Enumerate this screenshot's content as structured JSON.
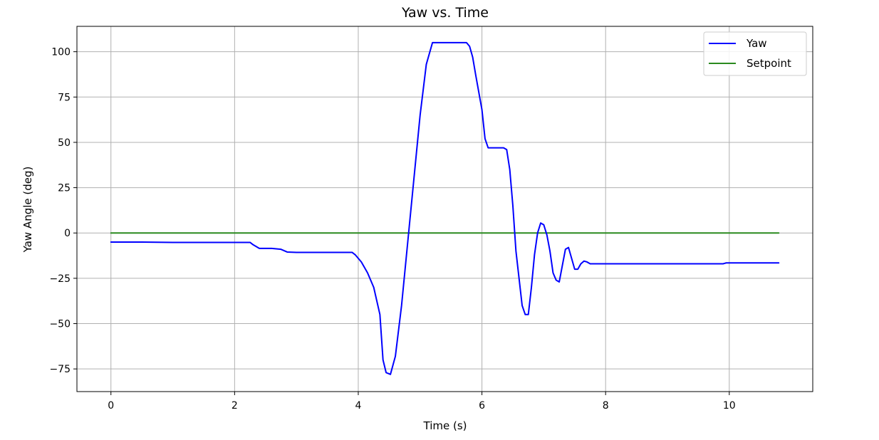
{
  "chart_data": {
    "type": "line",
    "title": "Yaw vs. Time",
    "xlabel": "Time (s)",
    "ylabel": "Yaw Angle (deg)",
    "xlim": [
      -0.55,
      11.35
    ],
    "ylim": [
      -87.5,
      114
    ],
    "xticks": [
      0,
      2,
      4,
      6,
      8,
      10
    ],
    "yticks": [
      -75,
      -50,
      -25,
      0,
      25,
      50,
      75,
      100
    ],
    "ytick_labels": [
      "−75",
      "−50",
      "−25",
      "0",
      "25",
      "50",
      "75",
      "100"
    ],
    "grid": true,
    "legend_position": "top-right",
    "series": [
      {
        "name": "Yaw",
        "color": "#0000ff",
        "x": [
          0,
          0.5,
          1.0,
          1.5,
          2.0,
          2.25,
          2.3,
          2.4,
          2.6,
          2.75,
          2.85,
          3.0,
          3.5,
          3.9,
          3.95,
          4.05,
          4.15,
          4.25,
          4.35,
          4.4,
          4.45,
          4.52,
          4.6,
          4.7,
          4.8,
          4.9,
          5.0,
          5.1,
          5.2,
          5.4,
          5.6,
          5.75,
          5.8,
          5.85,
          5.9,
          6.0,
          6.05,
          6.1,
          6.15,
          6.25,
          6.35,
          6.4,
          6.45,
          6.5,
          6.55,
          6.6,
          6.65,
          6.7,
          6.75,
          6.8,
          6.85,
          6.9,
          6.95,
          7.0,
          7.05,
          7.1,
          7.15,
          7.2,
          7.25,
          7.3,
          7.35,
          7.4,
          7.45,
          7.5,
          7.55,
          7.6,
          7.65,
          7.7,
          7.75,
          7.8,
          7.9,
          8.0,
          9.0,
          9.9,
          9.95,
          10.8
        ],
        "values": [
          -5,
          -5,
          -5.2,
          -5.2,
          -5.2,
          -5.2,
          -6.5,
          -8.5,
          -8.5,
          -9,
          -10.5,
          -10.7,
          -10.7,
          -10.7,
          -12,
          -16,
          -22,
          -30,
          -45,
          -70,
          -77,
          -78,
          -68,
          -40,
          -5,
          30,
          65,
          93,
          105,
          105,
          105,
          105,
          103,
          97,
          87,
          68,
          52,
          47,
          47,
          47,
          47,
          46,
          35,
          15,
          -10,
          -25,
          -40,
          -45,
          -45,
          -30,
          -12,
          0,
          5.5,
          4.5,
          -1,
          -10,
          -22,
          -26,
          -27,
          -18,
          -9,
          -8,
          -14,
          -20,
          -20,
          -17,
          -15.5,
          -16,
          -17,
          -17,
          -17,
          -17,
          -17,
          -17,
          -16.5,
          -16.5
        ]
      },
      {
        "name": "Setpoint",
        "color": "#2a8a1f",
        "x": [
          0,
          10.8
        ],
        "values": [
          0,
          0
        ]
      }
    ]
  }
}
